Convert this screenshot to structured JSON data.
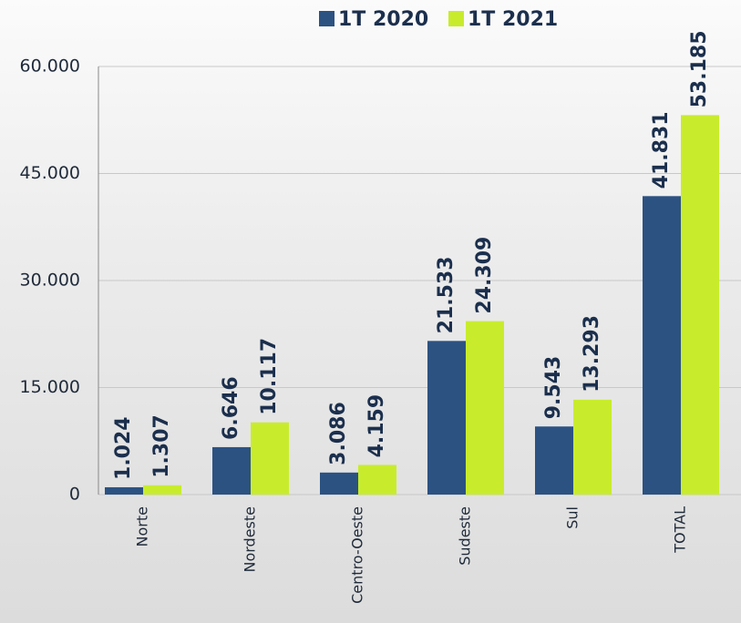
{
  "chart_data": {
    "type": "bar",
    "categories": [
      "Norte",
      "Nordeste",
      "Centro-Oeste",
      "Sudeste",
      "Sul",
      "TOTAL"
    ],
    "series": [
      {
        "name": "1T 2020",
        "color": "#2c5282",
        "values": [
          1024,
          6646,
          3086,
          21533,
          9543,
          41831
        ],
        "value_labels": [
          "1.024",
          "6.646",
          "3.086",
          "21.533",
          "9.543",
          "41.831"
        ]
      },
      {
        "name": "1T 2021",
        "color": "#c8ec2c",
        "values": [
          1307,
          10117,
          4159,
          24309,
          13293,
          53185
        ],
        "value_labels": [
          "1.307",
          "10.117",
          "4.159",
          "24.309",
          "13.293",
          "53.185"
        ]
      }
    ],
    "ylim": [
      0,
      60000
    ],
    "yticks": [
      0,
      {
        "value": 15000,
        "label": "15.000"
      },
      {
        "value": 30000,
        "label": "30.000"
      },
      {
        "value": 45000,
        "label": "45.000"
      },
      {
        "value": 60000,
        "label": "60.000"
      }
    ],
    "grid": true
  }
}
